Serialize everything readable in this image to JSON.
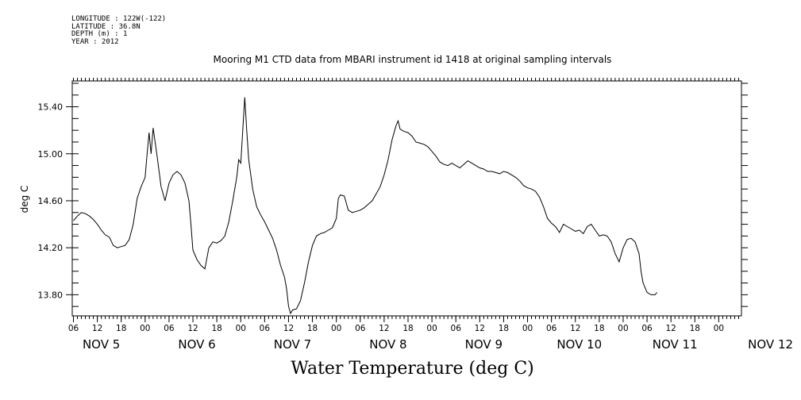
{
  "meta": {
    "longitude": "LONGITUDE : 122W(-122)",
    "latitude": "LATITUDE : 36.8N",
    "depth": "DEPTH (m) : 1",
    "year": "YEAR : 2012"
  },
  "chart_data": {
    "type": "line",
    "title": "Mooring M1 CTD data from MBARI instrument id 1418 at original sampling intervals",
    "xlabel": "Water Temperature (deg C)",
    "ylabel": "deg C",
    "ylim": [
      13.62,
      15.62
    ],
    "yticks": [
      "13.80",
      "14.20",
      "14.60",
      "15.00",
      "15.40"
    ],
    "xlim_hours": [
      0,
      168
    ],
    "x_hour_ticks": [
      "06",
      "12",
      "18",
      "00",
      "06",
      "12",
      "18",
      "00",
      "06",
      "12",
      "18",
      "00",
      "06",
      "12",
      "18",
      "00",
      "06",
      "12",
      "18",
      "00",
      "06",
      "12",
      "18",
      "00",
      "06",
      "12",
      "18",
      "00"
    ],
    "x_day_labels": [
      "NOV  5",
      "NOV  6",
      "NOV  7",
      "NOV  8",
      "NOV  9",
      "NOV 10",
      "NOV 11",
      "NOV 12"
    ],
    "grid": false,
    "series": [
      {
        "values": [
          [
            0,
            14.43
          ],
          [
            1,
            14.47
          ],
          [
            2,
            14.5
          ],
          [
            3,
            14.49
          ],
          [
            4,
            14.47
          ],
          [
            5,
            14.44
          ],
          [
            6,
            14.4
          ],
          [
            7,
            14.35
          ],
          [
            8,
            14.31
          ],
          [
            9,
            14.29
          ],
          [
            10,
            14.22
          ],
          [
            11,
            14.2
          ],
          [
            12,
            14.21
          ],
          [
            13,
            14.22
          ],
          [
            14,
            14.27
          ],
          [
            15,
            14.4
          ],
          [
            16,
            14.62
          ],
          [
            17,
            14.72
          ],
          [
            18,
            14.8
          ],
          [
            18.5,
            15.0
          ],
          [
            19,
            15.18
          ],
          [
            19.5,
            15.0
          ],
          [
            20,
            15.22
          ],
          [
            20.5,
            15.1
          ],
          [
            21,
            14.98
          ],
          [
            22,
            14.72
          ],
          [
            23,
            14.6
          ],
          [
            24,
            14.75
          ],
          [
            25,
            14.82
          ],
          [
            26,
            14.85
          ],
          [
            27,
            14.82
          ],
          [
            28,
            14.75
          ],
          [
            29,
            14.6
          ],
          [
            29.5,
            14.4
          ],
          [
            30,
            14.18
          ],
          [
            31,
            14.1
          ],
          [
            32,
            14.05
          ],
          [
            33,
            14.02
          ],
          [
            34,
            14.2
          ],
          [
            35,
            14.25
          ],
          [
            36,
            14.24
          ],
          [
            37,
            14.26
          ],
          [
            38,
            14.3
          ],
          [
            39,
            14.42
          ],
          [
            40,
            14.6
          ],
          [
            41,
            14.8
          ],
          [
            41.5,
            14.95
          ],
          [
            42,
            14.92
          ],
          [
            42.5,
            15.2
          ],
          [
            43,
            15.48
          ],
          [
            43.5,
            15.2
          ],
          [
            44,
            14.95
          ],
          [
            45,
            14.7
          ],
          [
            46,
            14.55
          ],
          [
            47,
            14.48
          ],
          [
            48,
            14.42
          ],
          [
            49,
            14.35
          ],
          [
            50,
            14.28
          ],
          [
            51,
            14.18
          ],
          [
            52,
            14.05
          ],
          [
            53,
            13.95
          ],
          [
            53.5,
            13.85
          ],
          [
            54,
            13.7
          ],
          [
            54.5,
            13.64
          ],
          [
            55,
            13.67
          ],
          [
            56,
            13.68
          ],
          [
            57,
            13.75
          ],
          [
            58,
            13.9
          ],
          [
            59,
            14.08
          ],
          [
            60,
            14.22
          ],
          [
            61,
            14.3
          ],
          [
            62,
            14.32
          ],
          [
            63,
            14.33
          ],
          [
            64,
            14.35
          ],
          [
            65,
            14.37
          ],
          [
            66,
            14.45
          ],
          [
            66.5,
            14.62
          ],
          [
            67,
            14.65
          ],
          [
            68,
            14.64
          ],
          [
            69,
            14.52
          ],
          [
            70,
            14.5
          ],
          [
            71,
            14.51
          ],
          [
            72,
            14.52
          ],
          [
            73,
            14.54
          ],
          [
            74,
            14.57
          ],
          [
            75,
            14.6
          ],
          [
            76,
            14.66
          ],
          [
            77,
            14.72
          ],
          [
            78,
            14.82
          ],
          [
            79,
            14.95
          ],
          [
            80,
            15.12
          ],
          [
            81,
            15.24
          ],
          [
            81.5,
            15.28
          ],
          [
            82,
            15.21
          ],
          [
            83,
            15.19
          ],
          [
            84,
            15.18
          ],
          [
            85,
            15.15
          ],
          [
            86,
            15.1
          ],
          [
            87,
            15.09
          ],
          [
            88,
            15.08
          ],
          [
            89,
            15.06
          ],
          [
            90,
            15.02
          ],
          [
            91,
            14.98
          ],
          [
            92,
            14.93
          ],
          [
            93,
            14.91
          ],
          [
            94,
            14.9
          ],
          [
            95,
            14.92
          ],
          [
            96,
            14.9
          ],
          [
            97,
            14.88
          ],
          [
            98,
            14.91
          ],
          [
            99,
            14.94
          ],
          [
            100,
            14.92
          ],
          [
            101,
            14.9
          ],
          [
            102,
            14.88
          ],
          [
            103,
            14.87
          ],
          [
            104,
            14.85
          ],
          [
            105,
            14.85
          ],
          [
            106,
            14.84
          ],
          [
            107,
            14.83
          ],
          [
            108,
            14.85
          ],
          [
            109,
            14.84
          ],
          [
            110,
            14.82
          ],
          [
            111,
            14.8
          ],
          [
            112,
            14.77
          ],
          [
            113,
            14.73
          ],
          [
            114,
            14.71
          ],
          [
            115,
            14.7
          ],
          [
            116,
            14.68
          ],
          [
            117,
            14.63
          ],
          [
            118,
            14.55
          ],
          [
            119,
            14.45
          ],
          [
            120,
            14.41
          ],
          [
            121,
            14.38
          ],
          [
            122,
            14.33
          ],
          [
            123,
            14.4
          ],
          [
            124,
            14.38
          ],
          [
            125,
            14.36
          ],
          [
            126,
            14.34
          ],
          [
            127,
            14.35
          ],
          [
            128,
            14.32
          ],
          [
            129,
            14.38
          ],
          [
            130,
            14.4
          ],
          [
            131,
            14.35
          ],
          [
            132,
            14.3
          ],
          [
            133,
            14.31
          ],
          [
            134,
            14.3
          ],
          [
            135,
            14.25
          ],
          [
            136,
            14.15
          ],
          [
            137,
            14.08
          ],
          [
            138,
            14.2
          ],
          [
            139,
            14.27
          ],
          [
            140,
            14.28
          ],
          [
            141,
            14.25
          ],
          [
            142,
            14.15
          ],
          [
            142.5,
            14.0
          ],
          [
            143,
            13.9
          ],
          [
            144,
            13.82
          ],
          [
            145,
            13.8
          ],
          [
            146,
            13.8
          ],
          [
            146.5,
            13.82
          ]
        ]
      }
    ],
    "line_color": "#000000"
  }
}
